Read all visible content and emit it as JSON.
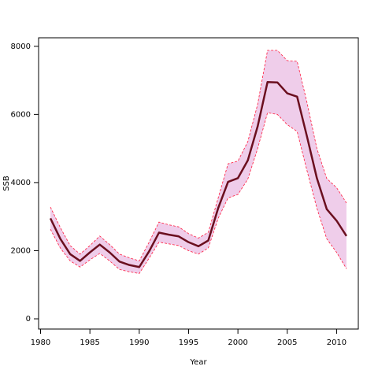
{
  "chart_data": {
    "type": "line",
    "x_label": "Year",
    "y_label": "SSB",
    "x": [
      1981,
      1982,
      1983,
      1984,
      1985,
      1986,
      1987,
      1988,
      1989,
      1990,
      1991,
      1992,
      1993,
      1994,
      1995,
      1996,
      1997,
      1998,
      1999,
      2000,
      2001,
      2002,
      2003,
      2004,
      2005,
      2006,
      2007,
      2008,
      2009,
      2010,
      2011
    ],
    "values": [
      2950,
      2350,
      1900,
      1700,
      1950,
      2180,
      1950,
      1680,
      1580,
      1520,
      1980,
      2530,
      2470,
      2420,
      2250,
      2130,
      2300,
      3250,
      4020,
      4130,
      4650,
      5650,
      6950,
      6940,
      6620,
      6520,
      5350,
      4130,
      3220,
      2880,
      2430
    ],
    "upper": [
      3280,
      2680,
      2150,
      1900,
      2150,
      2430,
      2180,
      1900,
      1790,
      1700,
      2250,
      2840,
      2760,
      2700,
      2500,
      2370,
      2540,
      3550,
      4550,
      4630,
      5200,
      6300,
      7880,
      7880,
      7580,
      7560,
      6350,
      5000,
      4120,
      3850,
      3400
    ],
    "lower": [
      2630,
      2080,
      1700,
      1520,
      1730,
      1920,
      1700,
      1450,
      1380,
      1330,
      1780,
      2250,
      2200,
      2150,
      2000,
      1900,
      2080,
      2950,
      3550,
      3650,
      4100,
      5000,
      6050,
      6000,
      5700,
      5500,
      4350,
      3250,
      2350,
      1950,
      1470
    ],
    "color": "#6b0f1f",
    "band_color": "#efcdea",
    "bound_color": "#ff1a3c",
    "xlim": [
      1979.8,
      2012.2
    ],
    "ylim": [
      -300,
      8250
    ],
    "xticks": [
      1980,
      1985,
      1990,
      1995,
      2000,
      2005,
      2010
    ],
    "yticks": [
      0,
      2000,
      4000,
      6000,
      8000
    ]
  }
}
